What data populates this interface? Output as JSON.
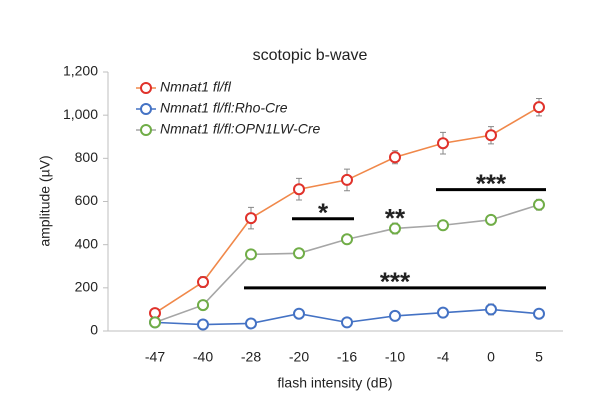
{
  "chart_data": {
    "type": "line",
    "title": "scotopic b-wave",
    "x_label": "flash intensity (dB)",
    "y_label": "amplitude (µV)",
    "categories": [
      "-47",
      "-40",
      "-28",
      "-20",
      "-16",
      "-10",
      "-4",
      "0",
      "5"
    ],
    "series": [
      {
        "name": "Nmnat1 fl/fl",
        "color": "#e0322b",
        "line_color": "#f0884a",
        "values": [
          83,
          227,
          523,
          657,
          700,
          805,
          870,
          907,
          1037
        ],
        "errors": [
          20,
          25,
          50,
          50,
          50,
          30,
          50,
          40,
          40
        ]
      },
      {
        "name": "Nmnat1 fl/fl:Rho-Cre",
        "color": "#4472c4",
        "line_color": "#4472c4",
        "values": [
          40,
          30,
          35,
          80,
          40,
          70,
          85,
          100,
          80
        ],
        "errors": [
          10,
          10,
          10,
          15,
          10,
          15,
          15,
          25,
          15
        ]
      },
      {
        "name": "Nmnat1 fl/fl:OPN1LW-Cre",
        "color": "#70ad47",
        "line_color": "#a6a6a6",
        "values": [
          40,
          120,
          355,
          360,
          425,
          475,
          490,
          515,
          585
        ],
        "errors": [
          10,
          20,
          20,
          15,
          15,
          25,
          20,
          15,
          25
        ]
      }
    ],
    "ylim": [
      0,
      1200
    ],
    "yticks": [
      0,
      200,
      400,
      600,
      800,
      {
        "value": 1000,
        "label": "1,000"
      },
      {
        "value": 1200,
        "label": "1,200"
      }
    ],
    "annotations": [
      {
        "text": "*",
        "from": "-20",
        "to": "-16",
        "y": 520
      },
      {
        "text": "**",
        "from": "-10",
        "to": "-10",
        "y": 560
      },
      {
        "text": "***",
        "from": "-4",
        "to": "5",
        "y": 655
      },
      {
        "text": "***",
        "from": "-28",
        "to": "5",
        "y": 200
      }
    ]
  }
}
